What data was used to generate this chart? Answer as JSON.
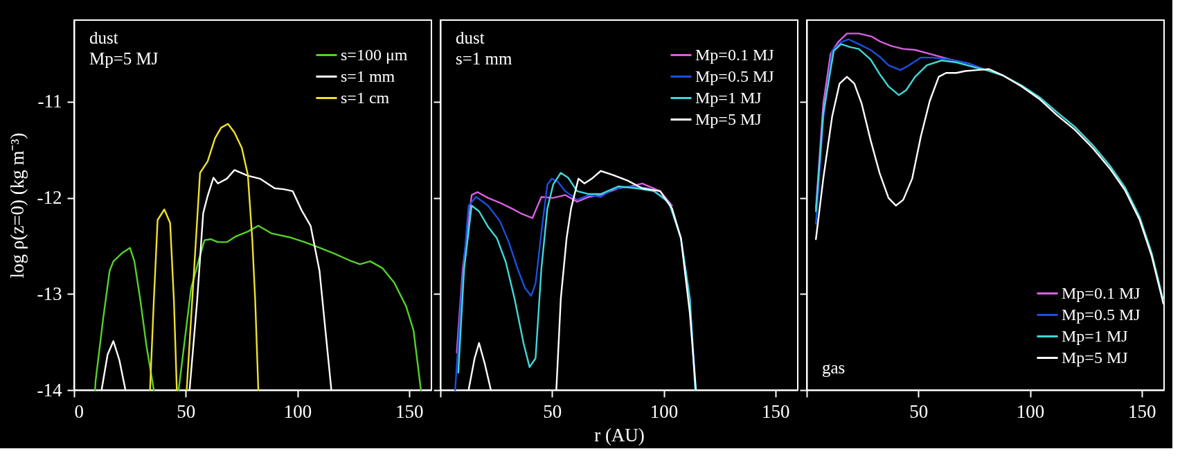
{
  "chart_data": [
    {
      "type": "line",
      "ylabel": "log ρ(z=0) (kg m⁻³)",
      "xlim": [
        0,
        160
      ],
      "ylim": [
        -14,
        -10.15
      ],
      "xticks": [
        0,
        50,
        100,
        150
      ],
      "yticks": [
        -14,
        -13,
        -12,
        -11
      ],
      "legend": "top right",
      "annotations": [
        "dust",
        "Mp=5 MJ"
      ],
      "series": [
        {
          "name": "s=100 μm",
          "color": "#55d12a",
          "x": [
            9.4,
            9.6,
            13,
            15.9,
            17.6,
            21.7,
            25,
            27,
            29.7,
            32.4,
            35.7,
            40,
            46.8,
            52.4,
            56.4,
            58.4,
            61.1,
            64.4,
            68.4,
            72.5,
            77.8,
            82.5,
            88.5,
            96.5,
            103.2,
            110,
            116.6,
            123.3,
            128,
            132.6,
            138,
            143.3,
            148.7,
            152,
            155.3
          ],
          "values": [
            -14,
            -13.91,
            -13.26,
            -12.76,
            -12.66,
            -12.57,
            -12.52,
            -12.66,
            -13.07,
            -13.54,
            -14,
            null,
            -14,
            -12.94,
            -12.6,
            -12.44,
            -12.43,
            -12.46,
            -12.46,
            -12.4,
            -12.35,
            -12.29,
            -12.37,
            -12.41,
            -12.46,
            -12.52,
            -12.58,
            -12.65,
            -12.69,
            -12.66,
            -12.73,
            -12.88,
            -13.13,
            -13.38,
            -14
          ]
        },
        {
          "name": "s=1 mm",
          "color": "#ffffff",
          "x": [
            12.3,
            15,
            17.6,
            20.3,
            23,
            40,
            51.7,
            55.1,
            57.8,
            59.8,
            62.4,
            64.4,
            68.4,
            71.8,
            77.8,
            83.2,
            89.8,
            93.9,
            97.9,
            101.9,
            105.9,
            109.9,
            115.2
          ],
          "values": [
            -14,
            -13.63,
            -13.49,
            -13.69,
            -14,
            null,
            -14,
            -13.07,
            -12.16,
            -11.98,
            -11.79,
            -11.85,
            -11.8,
            -11.71,
            -11.77,
            -11.8,
            -11.9,
            -11.91,
            -11.93,
            -12.13,
            -12.29,
            -12.76,
            -14
          ]
        },
        {
          "name": "s=1 cm",
          "color": "#f0e030",
          "x": [
            34,
            35.7,
            37.4,
            40.4,
            43,
            44.7,
            46,
            48,
            50.4,
            53.7,
            56.4,
            59.8,
            63.1,
            65.8,
            68.9,
            71.8,
            75.1,
            77.8,
            79.8,
            81.1,
            82.5
          ],
          "values": [
            -14,
            -13.07,
            -12.23,
            -12.12,
            -12.26,
            -13.07,
            -14,
            null,
            -14,
            -12.76,
            -11.74,
            -11.62,
            -11.38,
            -11.27,
            -11.23,
            -11.32,
            -11.48,
            -11.76,
            -12.44,
            -13.07,
            -14
          ]
        }
      ]
    },
    {
      "type": "line",
      "xlabel": "r (AU)",
      "xlim": [
        0,
        160
      ],
      "ylim": [
        -14,
        -10.15
      ],
      "xticks": [
        {
          "value": 0,
          "label": null
        },
        50,
        100,
        150
      ],
      "yticks": [
        -14,
        -13,
        -12,
        -11
      ],
      "tick_labels": "x",
      "legend": "top right",
      "annotations": [
        "dust",
        "s=1 mm"
      ],
      "series": [
        {
          "name": "Mp=0.1 MJ",
          "color": "#d860e0",
          "x": [
            7.3,
            10,
            14,
            16.6,
            21.3,
            26.6,
            31.9,
            35.9,
            41.2,
            45.2,
            50.5,
            55.9,
            61.2,
            66.5,
            71.8,
            79.8,
            85.1,
            90.4,
            98.4,
            103.7
          ],
          "values": [
            -13.61,
            -12.74,
            -11.97,
            -11.94,
            -12.0,
            -12.05,
            -12.11,
            -12.16,
            -12.21,
            -11.99,
            -12.0,
            -11.97,
            -12.04,
            -11.99,
            -11.97,
            -11.9,
            -11.88,
            -11.85,
            -11.93,
            -12.08
          ]
        },
        {
          "name": "Mp=0.5 MJ",
          "color": "#1a4fe0",
          "x": [
            6.6,
            9.3,
            12.6,
            16,
            21.3,
            26.6,
            30.6,
            34.6,
            37.9,
            40.6,
            42.6,
            45.2,
            47.9,
            49.9,
            52.5,
            55.9,
            61.2,
            66.5,
            71.8,
            77.1,
            85.1,
            93.1,
            99.7,
            103.7,
            107.7,
            111.7,
            114.4
          ],
          "values": [
            -14,
            -13.05,
            -12.08,
            -11.99,
            -12.08,
            -12.24,
            -12.46,
            -12.74,
            -12.94,
            -13.02,
            -12.89,
            -12.36,
            -11.86,
            -11.8,
            -11.83,
            -11.93,
            -12.02,
            -11.97,
            -11.99,
            -11.91,
            -11.88,
            -11.9,
            -11.99,
            -12.11,
            -12.42,
            -13.05,
            -14
          ]
        },
        {
          "name": "Mp=1 MJ",
          "color": "#40d8d8",
          "x": [
            8,
            10.6,
            14,
            17.3,
            21.3,
            25.3,
            29.3,
            33.2,
            37.2,
            39.9,
            42.6,
            45.2,
            47.9,
            50.5,
            53.9,
            57.2,
            61.2,
            66.5,
            71.8,
            79.8,
            87.8,
            95.7,
            102.4,
            107.7,
            111.7,
            114.1
          ],
          "values": [
            -13.82,
            -12.74,
            -12.08,
            -12.14,
            -12.3,
            -12.42,
            -12.67,
            -13.05,
            -13.51,
            -13.76,
            -13.67,
            -12.74,
            -12.11,
            -11.86,
            -11.74,
            -11.79,
            -11.93,
            -11.96,
            -11.96,
            -11.88,
            -11.9,
            -11.93,
            -12.05,
            -12.42,
            -13.05,
            -14
          ]
        },
        {
          "name": "Mp=5 MJ",
          "color": "#ffffff",
          "x": [
            12.6,
            15.3,
            17.3,
            19.9,
            22.6,
            40,
            51.9,
            53.9,
            56.5,
            58.5,
            61.8,
            64.5,
            67.8,
            71.8,
            77.1,
            83.8,
            90.4,
            98.4,
            103.7,
            107.7,
            111.7,
            114.4
          ],
          "values": [
            -14,
            -13.67,
            -13.51,
            -13.73,
            -14,
            null,
            -14,
            -13.05,
            -12.42,
            -12.11,
            -11.8,
            -11.85,
            -11.8,
            -11.72,
            -11.76,
            -11.82,
            -11.9,
            -11.93,
            -12.11,
            -12.42,
            -13.2,
            -14
          ]
        }
      ]
    },
    {
      "type": "line",
      "xlim": [
        0,
        160
      ],
      "ylim": [
        -14,
        -10.15
      ],
      "xticks": [
        {
          "value": 0,
          "label": null
        },
        50,
        100,
        150
      ],
      "yticks": [
        -14,
        -13,
        -12,
        -11
      ],
      "tick_labels": "x",
      "legend": "bottom right",
      "annotations": [
        "gas"
      ],
      "series": [
        {
          "name": "Mp=0.1 MJ",
          "color": "#d860e0",
          "x": [
            4.1,
            7.4,
            10.7,
            14,
            18,
            23.3,
            29,
            32.6,
            37.9,
            43.2,
            48.5,
            56.4,
            64.4,
            72.3,
            80.3
          ],
          "values": [
            -12.11,
            -11.02,
            -10.5,
            -10.38,
            -10.29,
            -10.29,
            -10.32,
            -10.37,
            -10.42,
            -10.45,
            -10.46,
            -10.51,
            -10.56,
            -10.6,
            -10.67
          ]
        },
        {
          "name": "Mp=0.5 MJ",
          "color": "#1a4fe0",
          "x": [
            4.1,
            7.4,
            11.4,
            15.4,
            18.7,
            23.3,
            28.6,
            32.6,
            36.6,
            41.9,
            45.8,
            51.1,
            56.4,
            64.4,
            72.3,
            80.3
          ],
          "values": [
            -12.27,
            -11.18,
            -10.47,
            -10.38,
            -10.35,
            -10.4,
            -10.46,
            -10.53,
            -10.62,
            -10.67,
            -10.62,
            -10.54,
            -10.54,
            -10.56,
            -10.6,
            -10.67
          ]
        },
        {
          "name": "Mp=1 MJ",
          "color": "#40d8d8",
          "x": [
            4.1,
            7.4,
            12.1,
            15.4,
            19.3,
            23.3,
            28.6,
            32.6,
            36.6,
            41.2,
            44.5,
            48.5,
            53.8,
            60.4,
            67,
            74.9,
            80.3,
            88.2,
            96.2,
            104.1,
            112.1,
            120,
            128,
            135.9,
            142.5,
            149.1,
            154.4,
            159.7
          ],
          "values": [
            -12.14,
            -11.12,
            -10.47,
            -10.4,
            -10.43,
            -10.45,
            -10.56,
            -10.71,
            -10.84,
            -10.93,
            -10.88,
            -10.74,
            -10.62,
            -10.57,
            -10.59,
            -10.64,
            -10.67,
            -10.73,
            -10.83,
            -10.95,
            -11.11,
            -11.26,
            -11.45,
            -11.67,
            -11.89,
            -12.2,
            -12.57,
            -13.07
          ]
        },
        {
          "name": "Mp=5 MJ",
          "color": "#ffffff",
          "x": [
            4.1,
            7.4,
            11.4,
            14.7,
            18,
            21.3,
            24.6,
            28.6,
            32.6,
            36.6,
            39.9,
            43.2,
            47.2,
            51.1,
            55.1,
            59.1,
            62.4,
            67,
            71,
            76.3,
            81.6,
            88.2,
            96.2,
            104.1,
            112.1,
            120,
            128,
            135.9,
            142.5,
            149.1,
            154.4,
            159.7
          ],
          "values": [
            -12.43,
            -11.8,
            -11.15,
            -10.81,
            -10.74,
            -10.81,
            -11.02,
            -11.4,
            -11.74,
            -12.0,
            -12.08,
            -12.02,
            -11.8,
            -11.36,
            -10.99,
            -10.74,
            -10.7,
            -10.7,
            -10.68,
            -10.67,
            -10.66,
            -10.73,
            -10.84,
            -10.97,
            -11.14,
            -11.29,
            -11.48,
            -11.7,
            -11.92,
            -12.23,
            -12.6,
            -13.1
          ]
        }
      ]
    }
  ]
}
